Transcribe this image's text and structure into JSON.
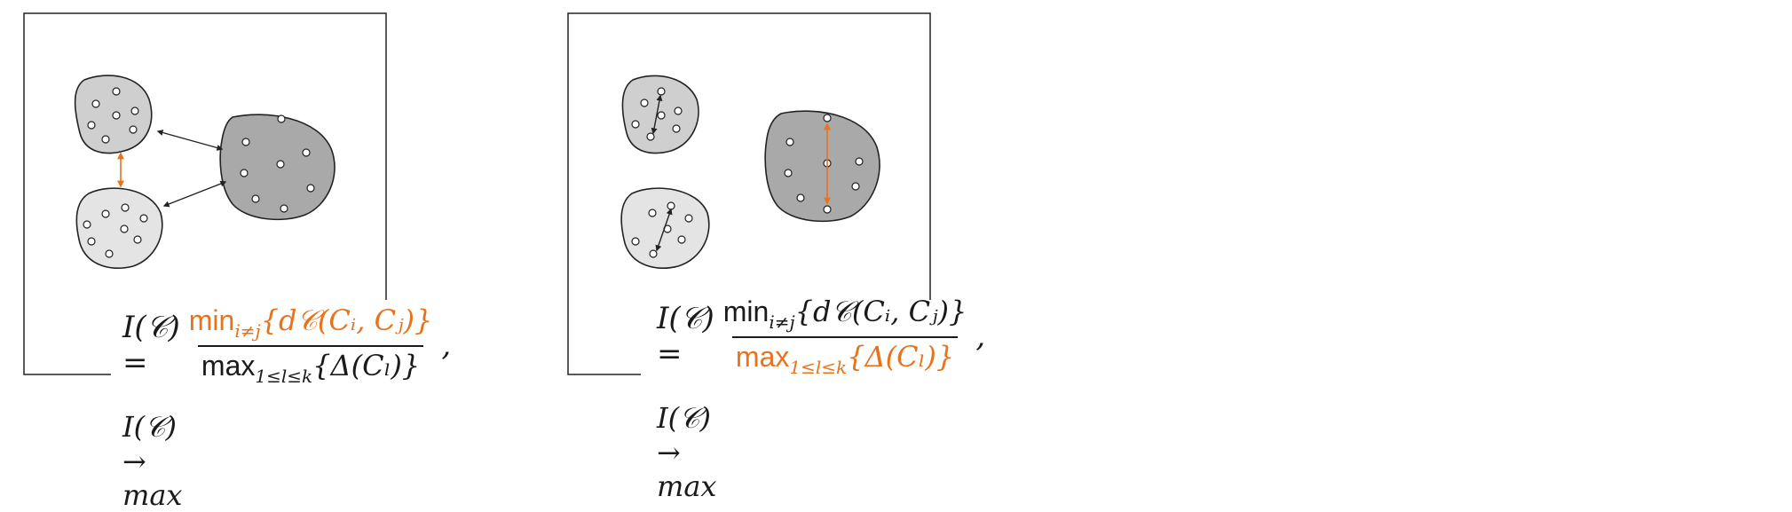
{
  "colors": {
    "accent": "#e8731c",
    "cluster_dark": "#a9a9a9",
    "cluster_mid": "#cfcfcf",
    "cluster_light": "#e4e4e4",
    "outline": "#222222"
  },
  "panels": [
    {
      "formula": {
        "lhs": "I(𝒞) =",
        "num_op": "min",
        "num_sub": "i≠j",
        "num_body": "{d𝒞(Cᵢ, Cⱼ)}",
        "den_op": "max",
        "den_sub": "1≤l≤k",
        "den_body": "{Δ(Cₗ)}",
        "trail": ",",
        "highlighted": "numerator"
      },
      "limit": "I(𝒞) → max"
    },
    {
      "formula": {
        "lhs": "I(𝒞) =",
        "num_op": "min",
        "num_sub": "i≠j",
        "num_body": "{d𝒞(Cᵢ, Cⱼ)}",
        "den_op": "max",
        "den_sub": "1≤l≤k",
        "den_body": "{Δ(Cₗ)}",
        "trail": ",",
        "highlighted": "denominator"
      },
      "limit": "I(𝒞) → max"
    }
  ]
}
